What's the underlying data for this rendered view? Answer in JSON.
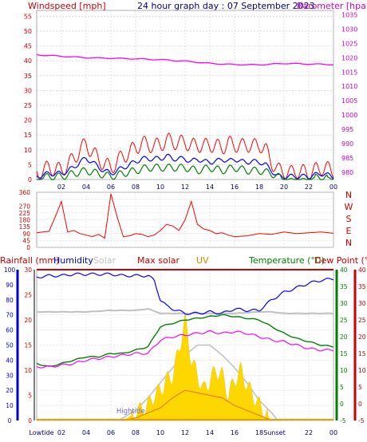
{
  "header": {
    "wind_label": "Windspeed [mph]",
    "title": "24 hour graph day : 07 September 2023",
    "baro_label": "Barometer [hpa]"
  },
  "colors": {
    "wind_gust": "#ff0000",
    "wind_avg": "#0000ff",
    "wind_base": "#008000",
    "barometer": "#ff00ff",
    "direction": "#ff0000",
    "humidity": "#0000ff",
    "solar": "#c0c0c0",
    "max_solar": "#c0c0c0",
    "uv": "#ffd700",
    "temperature": "#008000",
    "dew_point": "#ff00ff",
    "rain": "#cc0000",
    "axis_left": "#0000cc",
    "axis_temp": "#008000",
    "axis_dew": "#cc0000"
  },
  "bottom_header": {
    "rainfall": "Rainfall (mm)",
    "humidity": "Humidity",
    "solar": "Solar",
    "max_solar": "Max solar",
    "uv": "UV",
    "temperature": "Temperature (°C)",
    "dew_point": "Dew Point (°C)"
  },
  "chart_data": [
    {
      "type": "line",
      "name": "wind-baro",
      "x_ticks": [
        "02",
        "04",
        "06",
        "08",
        "10",
        "12",
        "14",
        "16",
        "18",
        "20",
        "22",
        "00"
      ],
      "x_range_hours": [
        0,
        24
      ],
      "y_left": {
        "label": "Windspeed [mph]",
        "ticks": [
          0,
          5,
          10,
          15,
          20,
          25,
          30,
          35,
          40,
          45,
          50,
          55
        ],
        "range": [
          0,
          57
        ]
      },
      "y_right": {
        "label": "Barometer [hpa]",
        "ticks": [
          980,
          985,
          990,
          995,
          1000,
          1005,
          1010,
          1015,
          1020,
          1025,
          1030,
          1035
        ],
        "range": [
          977.5,
          1036.5
        ]
      },
      "series": [
        {
          "key": "gust",
          "hours": [
            0,
            1,
            2,
            3,
            3.5,
            4,
            4.5,
            5,
            5.5,
            6,
            6.5,
            7,
            7.5,
            8,
            8.5,
            9,
            9.5,
            10,
            10.5,
            11,
            11.5,
            12,
            12.5,
            13,
            13.5,
            14,
            14.5,
            15,
            15.5,
            16,
            16.5,
            17,
            17.5,
            18,
            18.5,
            19,
            19.5,
            20,
            20.5,
            21,
            22,
            23,
            24
          ],
          "values": [
            2,
            4,
            3,
            7,
            10,
            12,
            9,
            7,
            5,
            4,
            6,
            8,
            9,
            11,
            12,
            12,
            11,
            12,
            13,
            13,
            12,
            13,
            11,
            12,
            11,
            12,
            11,
            11,
            12,
            12,
            11,
            12,
            11,
            12,
            10,
            6,
            3,
            3,
            2,
            3,
            2,
            4,
            3
          ]
        },
        {
          "key": "average",
          "hours": [
            0,
            1,
            2,
            3,
            3.5,
            4,
            4.5,
            5,
            5.5,
            6,
            6.5,
            7,
            7.5,
            8,
            8.5,
            9,
            9.5,
            10,
            10.5,
            11,
            11.5,
            12,
            12.5,
            13,
            13.5,
            14,
            14.5,
            15,
            15.5,
            16,
            16.5,
            17,
            17.5,
            18,
            18.5,
            19,
            19.5,
            20,
            21,
            22,
            23,
            24
          ],
          "values": [
            1,
            2,
            2,
            4,
            6,
            7,
            6,
            4,
            3,
            2,
            3,
            4,
            5,
            6,
            7,
            7,
            7,
            7,
            8,
            7,
            7,
            7,
            6,
            7,
            6,
            6,
            6,
            7,
            6,
            7,
            6,
            6,
            6,
            6,
            5,
            3,
            1,
            1,
            1,
            1,
            2,
            1
          ]
        },
        {
          "key": "base",
          "hours": [
            0,
            1,
            2,
            3,
            4,
            5,
            6,
            7,
            8,
            9,
            10,
            11,
            12,
            13,
            14,
            15,
            16,
            17,
            18,
            19,
            20,
            21,
            22,
            23,
            24
          ],
          "values": [
            0,
            1,
            1,
            2,
            3,
            2,
            1,
            2,
            3,
            4,
            4,
            4,
            4,
            3,
            4,
            3,
            4,
            3,
            3,
            2,
            0,
            0,
            0,
            1,
            0
          ]
        },
        {
          "key": "barometer",
          "hours": [
            0,
            2,
            4,
            6,
            8,
            10,
            12,
            14,
            16,
            18,
            20,
            22,
            24
          ],
          "values": [
            1021,
            1020.5,
            1020,
            1019.8,
            1019.6,
            1019.3,
            1018.8,
            1018,
            1017.6,
            1017.5,
            1018,
            1017.8,
            1017.6
          ]
        }
      ]
    },
    {
      "type": "line",
      "name": "wind-direction",
      "y_ticks": [
        0,
        45,
        90,
        135,
        180,
        225,
        270,
        315,
        360
      ],
      "y_ticks_shown": [
        0,
        45,
        90,
        135,
        180,
        225,
        270,
        360
      ],
      "y_range": [
        0,
        360
      ],
      "compass": [
        "N",
        "W",
        "S",
        "E",
        "N"
      ],
      "series": [
        {
          "key": "direction",
          "hours": [
            0,
            0.5,
            1,
            1.5,
            2,
            2.5,
            3,
            3.5,
            4,
            4.5,
            5,
            5.5,
            6,
            6.5,
            7,
            7.5,
            8,
            8.5,
            9,
            9.5,
            10,
            10.5,
            11,
            11.5,
            12,
            12.5,
            13,
            13.5,
            14,
            14.5,
            15,
            15.5,
            16,
            17,
            18,
            19,
            20,
            21,
            22,
            23,
            24
          ],
          "values": [
            95,
            100,
            105,
            200,
            300,
            100,
            110,
            90,
            80,
            70,
            85,
            60,
            350,
            200,
            70,
            75,
            90,
            85,
            70,
            80,
            110,
            150,
            140,
            110,
            180,
            300,
            150,
            120,
            110,
            90,
            95,
            80,
            70,
            75,
            90,
            85,
            100,
            90,
            95,
            100,
            92
          ]
        }
      ]
    },
    {
      "type": "line",
      "name": "temp-humidity-solar",
      "x_ticks": [
        "Lowtide",
        "02",
        "04",
        "06",
        "08",
        "10",
        "12",
        "14",
        "16",
        "18",
        "Sunset",
        "22",
        "00"
      ],
      "annotations": [
        "Hightide"
      ],
      "y_humidity": {
        "ticks": [
          0,
          10,
          20,
          30,
          40,
          50,
          60,
          70,
          80,
          90,
          100
        ],
        "range": [
          0,
          100
        ]
      },
      "y_rain": {
        "ticks": [
          0,
          5,
          10,
          15,
          20,
          25,
          30
        ],
        "range": [
          0,
          30
        ]
      },
      "y_temp": {
        "ticks": [
          -5,
          0,
          5,
          10,
          15,
          20,
          25,
          30,
          35,
          40
        ],
        "range": [
          -5,
          40
        ]
      },
      "y_dew": {
        "ticks": [
          -5,
          0,
          5,
          10,
          15,
          20,
          25,
          30,
          35,
          40
        ],
        "range": [
          -5,
          40
        ]
      },
      "series": [
        {
          "key": "humidity",
          "hours": [
            0,
            1,
            2,
            3,
            4,
            5,
            6,
            7,
            8,
            9,
            9.5,
            10,
            10.5,
            11,
            12,
            13,
            14,
            15,
            16,
            17,
            18,
            19,
            20,
            21,
            22,
            23,
            24
          ],
          "values": [
            95,
            96,
            96,
            97,
            97,
            97,
            97,
            96,
            96,
            96,
            93,
            80,
            76,
            74,
            71,
            71,
            72,
            71,
            74,
            73,
            73,
            80,
            85,
            88,
            91,
            93,
            94
          ]
        },
        {
          "key": "temperature",
          "hours": [
            0,
            1,
            2,
            3,
            4,
            5,
            6,
            7,
            8,
            9,
            9.5,
            10,
            11,
            12,
            13,
            14,
            15,
            16,
            17,
            18,
            19,
            20,
            21,
            22,
            23,
            24
          ],
          "values": [
            12,
            11,
            12,
            13,
            14,
            14,
            15,
            15,
            16,
            17,
            20,
            23,
            24,
            25,
            25.5,
            26,
            26.5,
            26,
            25.5,
            25,
            23,
            21,
            19.5,
            18.5,
            17.5,
            17
          ]
        },
        {
          "key": "dew_point",
          "hours": [
            0,
            1,
            2,
            3,
            4,
            5,
            6,
            7,
            8,
            9,
            9.5,
            10,
            11,
            12,
            13,
            14,
            15,
            16,
            17,
            18,
            19,
            20,
            21,
            22,
            23,
            24
          ],
          "values": [
            11,
            11,
            11.5,
            12,
            13,
            13.5,
            14,
            14.5,
            15,
            15,
            17,
            19,
            20,
            20.5,
            21,
            21.5,
            21,
            21.5,
            21,
            20,
            19,
            18.5,
            17.5,
            16.5,
            16,
            16
          ]
        },
        {
          "key": "solar",
          "hours": [
            0,
            2,
            4,
            6,
            8,
            9,
            10,
            12,
            14,
            16,
            18,
            19,
            20,
            22,
            24
          ],
          "values": [
            72,
            72,
            72,
            73,
            73,
            74,
            71,
            71,
            71,
            71,
            72,
            72,
            71,
            71,
            71
          ]
        },
        {
          "key": "rain",
          "hours": [
            0,
            24
          ],
          "values": [
            30,
            30
          ]
        },
        {
          "key": "max_solar",
          "hours": [
            6.6,
            8,
            9,
            10,
            11,
            12,
            13,
            14,
            15,
            16,
            17,
            18,
            19,
            19.5
          ],
          "values": [
            0,
            2,
            4.5,
            7.5,
            10.5,
            13,
            15,
            15,
            13,
            10.5,
            7.5,
            4,
            1.5,
            0
          ]
        },
        {
          "key": "uv_avg",
          "hours": [
            7,
            8,
            9,
            10,
            11,
            12,
            13,
            14,
            15,
            16,
            17,
            18,
            19
          ],
          "values": [
            0,
            0.5,
            1.5,
            2.5,
            4.5,
            6,
            5.5,
            5,
            4.5,
            3,
            2,
            1,
            0
          ]
        },
        {
          "key": "solar_fill",
          "hours": [
            7,
            8,
            9,
            9.5,
            10,
            10.5,
            11,
            11.5,
            12,
            12.5,
            13,
            13.5,
            14,
            14.5,
            15,
            15.5,
            16,
            16.5,
            17,
            17.5,
            18,
            18.5,
            19
          ],
          "values": [
            0,
            1.5,
            3,
            5,
            6,
            8,
            9,
            14,
            20,
            12,
            9,
            6,
            8,
            10,
            9,
            5,
            8,
            10,
            7,
            5,
            3,
            1.5,
            0
          ]
        }
      ]
    }
  ]
}
